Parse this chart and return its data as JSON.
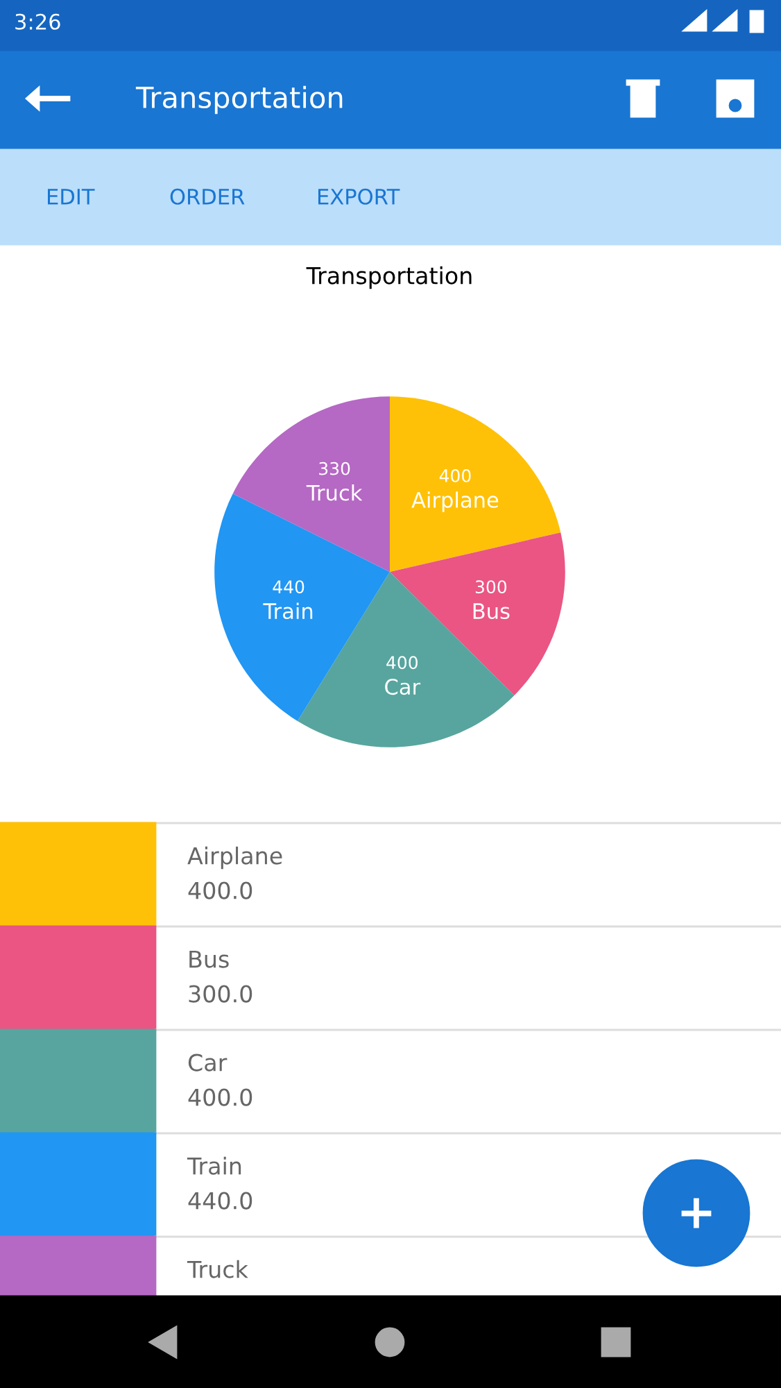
{
  "chart_data": {
    "type": "pie",
    "title": "Transportation",
    "categories": [
      "Airplane",
      "Bus",
      "Car",
      "Train",
      "Truck"
    ],
    "values": [
      400,
      300,
      400,
      440,
      330
    ],
    "colors": [
      "#ffc107",
      "#ea5583",
      "#57a59e",
      "#2196f3",
      "#b568c4"
    ],
    "data_labels": true,
    "annotations": [
      "3:26",
      "Transportation",
      "EDIT",
      "ORDER",
      "EXPORT",
      "400.0",
      "300.0",
      "400.0",
      "440.0"
    ]
  }
}
